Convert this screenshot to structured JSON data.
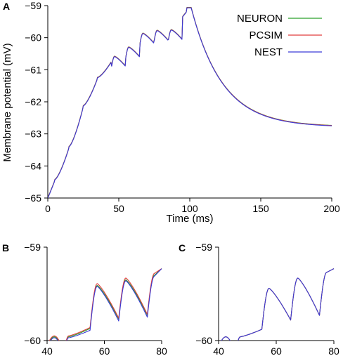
{
  "chart_data": [
    {
      "panel": "A",
      "type": "line",
      "xlabel": "Time (ms)",
      "ylabel": "Membrane potential (mV)",
      "xlim": [
        0,
        200
      ],
      "ylim": [
        -65,
        -59
      ],
      "xticks": [
        0,
        50,
        100,
        150,
        200
      ],
      "yticks": [
        -65,
        -64,
        -63,
        -62,
        -61,
        -60,
        -59
      ],
      "xtick_labels": [
        "0",
        "50",
        "100",
        "150",
        "200"
      ],
      "ytick_labels": [
        "−65",
        "−64",
        "−63",
        "−62",
        "−61",
        "−60",
        "−59"
      ],
      "legend_position": "top-right",
      "grid": false,
      "series": [
        {
          "name": "NEURON",
          "color": "#2aa02a"
        },
        {
          "name": "PCSIM",
          "color": "#e03c3c"
        },
        {
          "name": "NEST",
          "color": "#3a3ad6"
        }
      ],
      "input_spike_times_ms": [
        5,
        15,
        25,
        35,
        45,
        55,
        65,
        75,
        85,
        95
      ],
      "x": [
        0,
        5,
        15,
        25,
        35,
        45,
        55,
        65,
        75,
        85,
        95,
        100,
        110,
        125,
        150,
        175,
        200
      ],
      "y": [
        -65.0,
        -64.55,
        -63.4,
        -62.05,
        -61.2,
        -60.68,
        -60.38,
        -60.18,
        -60.07,
        -60.02,
        -59.98,
        -59.06,
        -60.0,
        -61.4,
        -62.45,
        -62.72,
        -62.78
      ],
      "peaks_after_input": [
        -64.42,
        -63.27,
        -62.0,
        -61.12,
        -60.58,
        -60.29,
        -59.86,
        -59.77,
        -59.75,
        -59.72
      ],
      "end_values": {
        "x_100_peak": -59.06,
        "x_200": -62.78
      }
    },
    {
      "panel": "B",
      "type": "line",
      "xlim": [
        40,
        80
      ],
      "ylim": [
        -60,
        -59
      ],
      "xticks": [
        40,
        60,
        80
      ],
      "yticks": [
        -60,
        -59
      ],
      "xtick_labels": [
        "40",
        "60",
        "80"
      ],
      "ytick_labels": [
        "−60",
        "−59"
      ],
      "series": [
        {
          "name": "NEURON",
          "color": "#2aa02a",
          "peaks": [
            -59.96,
            -59.41,
            -59.35,
            -59.3
          ],
          "troughs": [
            -60.06,
            -59.87,
            -59.77,
            -59.73
          ]
        },
        {
          "name": "PCSIM",
          "color": "#e03c3c",
          "peaks": [
            -59.95,
            -59.39,
            -59.33,
            -59.28
          ],
          "troughs": [
            -60.05,
            -59.86,
            -59.76,
            -59.72
          ]
        },
        {
          "name": "NEST",
          "color": "#3a3ad6",
          "peaks": [
            -59.97,
            -59.42,
            -59.36,
            -59.31
          ],
          "troughs": [
            -60.07,
            -59.89,
            -59.79,
            -59.75
          ]
        }
      ],
      "input_spike_times_ms": [
        45,
        55,
        65,
        75
      ],
      "end_value_x80": -59.23
    },
    {
      "panel": "C",
      "type": "line",
      "xlim": [
        40,
        80
      ],
      "ylim": [
        -60,
        -59
      ],
      "xticks": [
        40,
        60,
        80
      ],
      "yticks": [
        -60,
        -59
      ],
      "xtick_labels": [
        "40",
        "60",
        "80"
      ],
      "ytick_labels": [
        "−60",
        "−59"
      ],
      "series": [
        {
          "name": "NEURON",
          "color": "#2aa02a",
          "peaks": [
            -59.96,
            -59.44,
            -59.33,
            -59.27
          ],
          "troughs": [
            -60.06,
            -59.88,
            -59.78,
            -59.73
          ]
        },
        {
          "name": "PCSIM",
          "color": "#e03c3c",
          "peaks": [
            -59.96,
            -59.44,
            -59.33,
            -59.27
          ],
          "troughs": [
            -60.06,
            -59.88,
            -59.78,
            -59.73
          ]
        },
        {
          "name": "NEST",
          "color": "#3a3ad6",
          "peaks": [
            -59.96,
            -59.44,
            -59.33,
            -59.27
          ],
          "troughs": [
            -60.06,
            -59.88,
            -59.78,
            -59.73
          ]
        }
      ],
      "input_spike_times_ms": [
        45,
        55,
        65,
        75
      ],
      "end_value_x80": -59.23
    }
  ]
}
